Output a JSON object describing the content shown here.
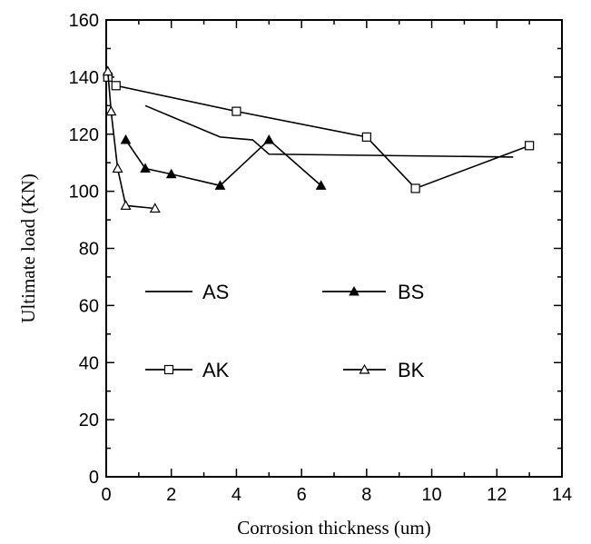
{
  "chart_data": {
    "type": "line",
    "xlabel": "Corrosion thickness (um)",
    "ylabel": "Ultimate load (KN)",
    "xlim": [
      0,
      14
    ],
    "ylim": [
      0,
      160
    ],
    "x_ticks": [
      0,
      2,
      4,
      6,
      8,
      10,
      12,
      14
    ],
    "y_ticks": [
      0,
      20,
      40,
      60,
      80,
      100,
      120,
      140,
      160
    ],
    "grid": false,
    "legend_placement": "center-left (inside plot)",
    "series": [
      {
        "name": "AS",
        "marker": "none",
        "x": [
          1.2,
          3.5,
          4.5,
          5,
          12.5
        ],
        "y": [
          130,
          119,
          118,
          113,
          112
        ]
      },
      {
        "name": "BS",
        "marker": "filled-triangle",
        "x": [
          0.6,
          1.2,
          2,
          3.5,
          5,
          6.6
        ],
        "y": [
          118,
          108,
          106,
          102,
          118,
          102
        ]
      },
      {
        "name": "AK",
        "marker": "open-square",
        "x": [
          0.05,
          0.3,
          4,
          8,
          9.5,
          13
        ],
        "y": [
          140,
          137,
          128,
          119,
          101,
          116
        ]
      },
      {
        "name": "BK",
        "marker": "open-triangle",
        "x": [
          0.05,
          0.15,
          0.35,
          0.6,
          1.5
        ],
        "y": [
          142,
          128,
          108,
          95,
          94
        ]
      }
    ]
  }
}
